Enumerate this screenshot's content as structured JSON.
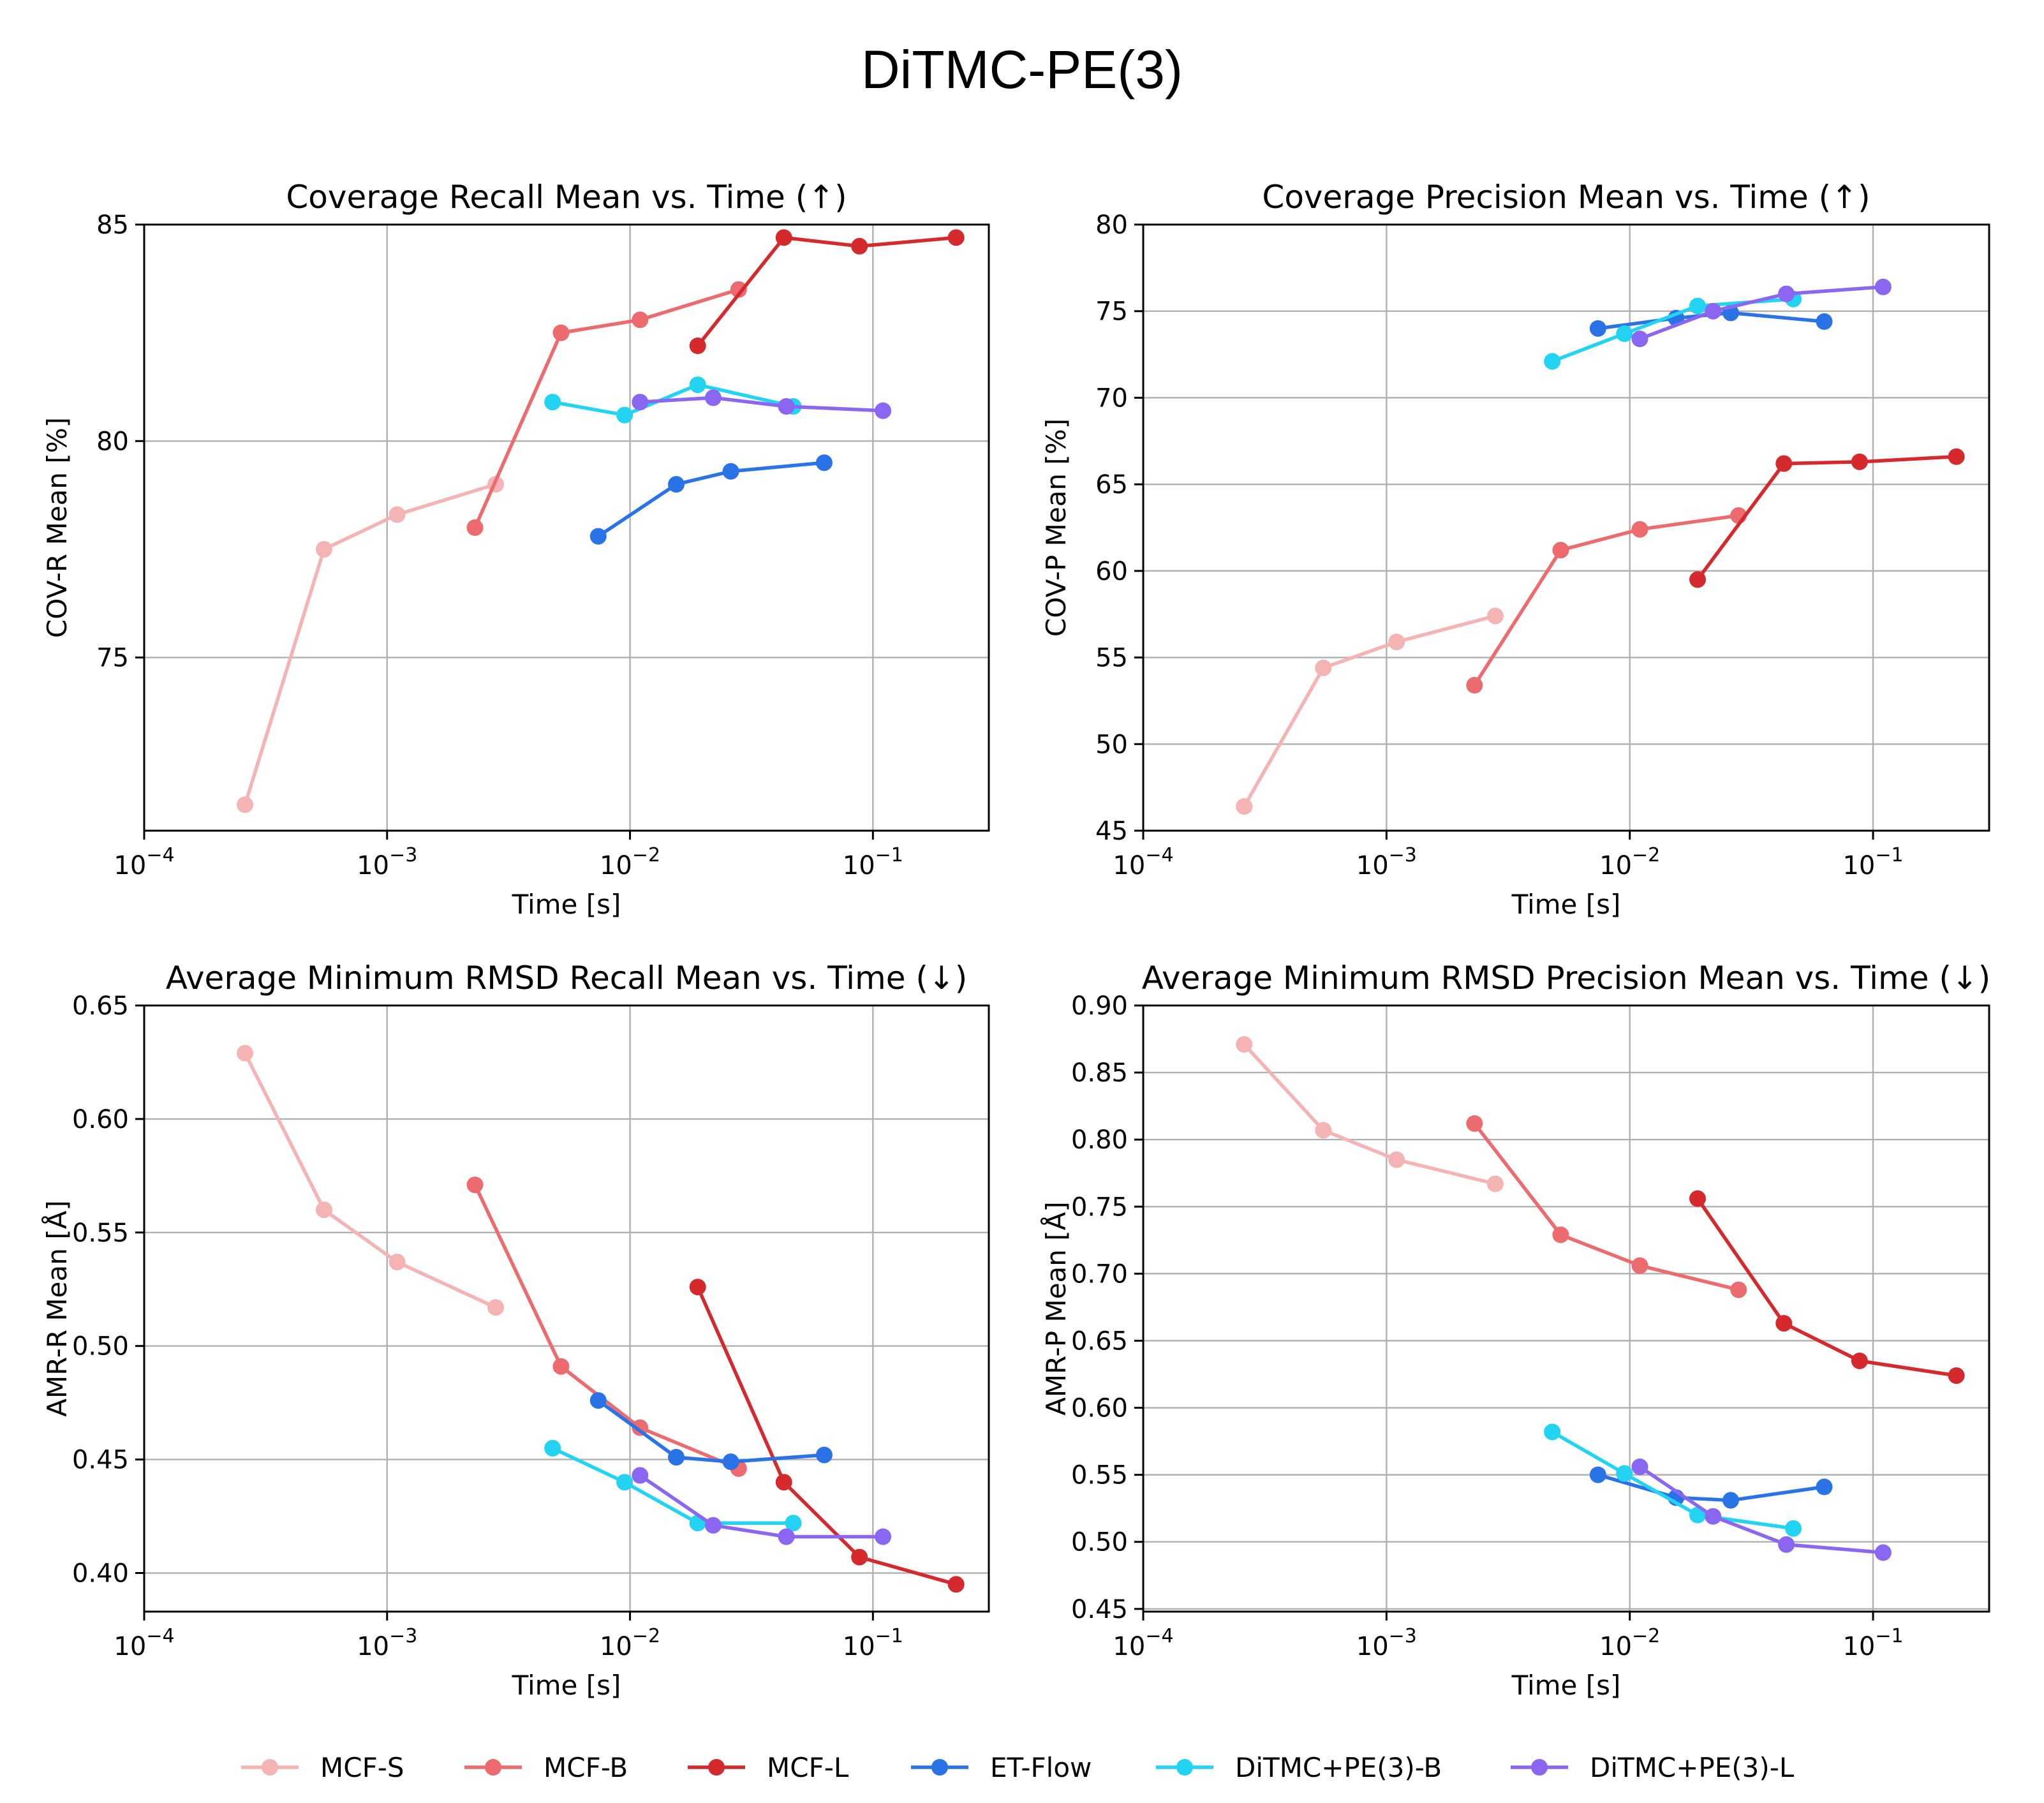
{
  "figure": {
    "title": "DiTMC-PE(3)"
  },
  "colors": {
    "MCF-S": "#f4b4b4",
    "MCF-B": "#ec6b6f",
    "MCF-L": "#d42a2e",
    "ET-Flow": "#2a73e6",
    "DiTMC+PE(3)-B": "#22d3f2",
    "DiTMC+PE(3)-L": "#8b66f0"
  },
  "legend": {
    "placement": "bottom-center",
    "entries": [
      "MCF-S",
      "MCF-B",
      "MCF-L",
      "ET-Flow",
      "DiTMC+PE(3)-B",
      "DiTMC+PE(3)-L"
    ]
  },
  "chart_data": [
    {
      "type": "line",
      "title": "Coverage Recall Mean vs. Time (↑)",
      "xlabel": "Time [s]",
      "ylabel": "COV-R Mean [%]",
      "xscale": "log",
      "xlim": [
        0.0001,
        0.3
      ],
      "ylim": [
        71,
        85
      ],
      "xticks": [
        0.0001,
        0.001,
        0.01,
        0.1
      ],
      "xtick_labels": [
        "10^-4",
        "10^-3",
        "10^-2",
        "10^-1"
      ],
      "yticks": [
        75,
        80,
        85
      ],
      "ytick_labels": [
        "75",
        "80",
        "85"
      ],
      "grid": true,
      "series": [
        {
          "name": "MCF-S",
          "x": [
            0.00026,
            0.00055,
            0.0011,
            0.0028
          ],
          "y": [
            71.6,
            77.5,
            78.3,
            79.0
          ]
        },
        {
          "name": "MCF-B",
          "x": [
            0.0023,
            0.0052,
            0.011,
            0.028
          ],
          "y": [
            78.0,
            82.5,
            82.8,
            83.5
          ]
        },
        {
          "name": "MCF-L",
          "x": [
            0.019,
            0.043,
            0.088,
            0.22
          ],
          "y": [
            82.2,
            84.7,
            84.5,
            84.7
          ]
        },
        {
          "name": "ET-Flow",
          "x": [
            0.0074,
            0.0155,
            0.026,
            0.063
          ],
          "y": [
            77.8,
            79.0,
            79.3,
            79.5
          ]
        },
        {
          "name": "DiTMC+PE(3)-B",
          "x": [
            0.0048,
            0.0095,
            0.019,
            0.047
          ],
          "y": [
            80.9,
            80.6,
            81.3,
            80.8
          ]
        },
        {
          "name": "DiTMC+PE(3)-L",
          "x": [
            0.011,
            0.022,
            0.044,
            0.11
          ],
          "y": [
            80.9,
            81.0,
            80.8,
            80.7
          ]
        }
      ]
    },
    {
      "type": "line",
      "title": "Coverage Precision Mean vs. Time (↑)",
      "xlabel": "Time [s]",
      "ylabel": "COV-P Mean [%]",
      "xscale": "log",
      "xlim": [
        0.0001,
        0.3
      ],
      "ylim": [
        45,
        80
      ],
      "xticks": [
        0.0001,
        0.001,
        0.01,
        0.1
      ],
      "xtick_labels": [
        "10^-4",
        "10^-3",
        "10^-2",
        "10^-1"
      ],
      "yticks": [
        45,
        50,
        55,
        60,
        65,
        70,
        75,
        80
      ],
      "ytick_labels": [
        "45",
        "50",
        "55",
        "60",
        "65",
        "70",
        "75",
        "80"
      ],
      "grid": true,
      "series": [
        {
          "name": "MCF-S",
          "x": [
            0.00026,
            0.00055,
            0.0011,
            0.0028
          ],
          "y": [
            46.4,
            54.4,
            55.9,
            57.4
          ]
        },
        {
          "name": "MCF-B",
          "x": [
            0.0023,
            0.0052,
            0.011,
            0.028
          ],
          "y": [
            53.4,
            61.2,
            62.4,
            63.2
          ]
        },
        {
          "name": "MCF-L",
          "x": [
            0.019,
            0.043,
            0.088,
            0.22
          ],
          "y": [
            59.5,
            66.2,
            66.3,
            66.6
          ]
        },
        {
          "name": "ET-Flow",
          "x": [
            0.0074,
            0.0155,
            0.026,
            0.063
          ],
          "y": [
            74.0,
            74.6,
            74.9,
            74.4
          ]
        },
        {
          "name": "DiTMC+PE(3)-B",
          "x": [
            0.0048,
            0.0095,
            0.019,
            0.047
          ],
          "y": [
            72.1,
            73.7,
            75.3,
            75.7
          ]
        },
        {
          "name": "DiTMC+PE(3)-L",
          "x": [
            0.011,
            0.022,
            0.044,
            0.11
          ],
          "y": [
            73.4,
            75.0,
            76.0,
            76.4
          ]
        }
      ]
    },
    {
      "type": "line",
      "title": "Average Minimum RMSD Recall Mean vs. Time (↓)",
      "xlabel": "Time [s]",
      "ylabel": "AMR-R Mean [Å]",
      "xscale": "log",
      "xlim": [
        0.0001,
        0.3
      ],
      "ylim": [
        0.383,
        0.65
      ],
      "xticks": [
        0.0001,
        0.001,
        0.01,
        0.1
      ],
      "xtick_labels": [
        "10^-4",
        "10^-3",
        "10^-2",
        "10^-1"
      ],
      "yticks": [
        0.4,
        0.45,
        0.5,
        0.55,
        0.6,
        0.65
      ],
      "ytick_labels": [
        "0.40",
        "0.45",
        "0.50",
        "0.55",
        "0.60",
        "0.65"
      ],
      "grid": true,
      "series": [
        {
          "name": "MCF-S",
          "x": [
            0.00026,
            0.00055,
            0.0011,
            0.0028
          ],
          "y": [
            0.629,
            0.56,
            0.537,
            0.517
          ]
        },
        {
          "name": "MCF-B",
          "x": [
            0.0023,
            0.0052,
            0.011,
            0.028
          ],
          "y": [
            0.571,
            0.491,
            0.464,
            0.446
          ]
        },
        {
          "name": "MCF-L",
          "x": [
            0.019,
            0.043,
            0.088,
            0.22
          ],
          "y": [
            0.526,
            0.44,
            0.407,
            0.395
          ]
        },
        {
          "name": "ET-Flow",
          "x": [
            0.0074,
            0.0155,
            0.026,
            0.063
          ],
          "y": [
            0.476,
            0.451,
            0.449,
            0.452
          ]
        },
        {
          "name": "DiTMC+PE(3)-B",
          "x": [
            0.0048,
            0.0095,
            0.019,
            0.047
          ],
          "y": [
            0.455,
            0.44,
            0.422,
            0.422
          ]
        },
        {
          "name": "DiTMC+PE(3)-L",
          "x": [
            0.011,
            0.022,
            0.044,
            0.11
          ],
          "y": [
            0.443,
            0.421,
            0.416,
            0.416
          ]
        }
      ]
    },
    {
      "type": "line",
      "title": "Average Minimum RMSD Precision Mean vs. Time (↓)",
      "xlabel": "Time [s]",
      "ylabel": "AMR-P Mean [Å]",
      "xscale": "log",
      "xlim": [
        0.0001,
        0.3
      ],
      "ylim": [
        0.448,
        0.9
      ],
      "xticks": [
        0.0001,
        0.001,
        0.01,
        0.1
      ],
      "xtick_labels": [
        "10^-4",
        "10^-3",
        "10^-2",
        "10^-1"
      ],
      "yticks": [
        0.45,
        0.5,
        0.55,
        0.6,
        0.65,
        0.7,
        0.75,
        0.8,
        0.85,
        0.9
      ],
      "ytick_labels": [
        "0.45",
        "0.50",
        "0.55",
        "0.60",
        "0.65",
        "0.70",
        "0.75",
        "0.80",
        "0.85",
        "0.90"
      ],
      "grid": true,
      "series": [
        {
          "name": "MCF-S",
          "x": [
            0.00026,
            0.00055,
            0.0011,
            0.0028
          ],
          "y": [
            0.871,
            0.807,
            0.785,
            0.767
          ]
        },
        {
          "name": "MCF-B",
          "x": [
            0.0023,
            0.0052,
            0.011,
            0.028
          ],
          "y": [
            0.812,
            0.729,
            0.706,
            0.688
          ]
        },
        {
          "name": "MCF-L",
          "x": [
            0.019,
            0.043,
            0.088,
            0.22
          ],
          "y": [
            0.756,
            0.663,
            0.635,
            0.624
          ]
        },
        {
          "name": "ET-Flow",
          "x": [
            0.0074,
            0.0155,
            0.026,
            0.063
          ],
          "y": [
            0.55,
            0.533,
            0.531,
            0.541
          ]
        },
        {
          "name": "DiTMC+PE(3)-B",
          "x": [
            0.0048,
            0.0095,
            0.019,
            0.047
          ],
          "y": [
            0.582,
            0.551,
            0.52,
            0.51
          ]
        },
        {
          "name": "DiTMC+PE(3)-L",
          "x": [
            0.011,
            0.022,
            0.044,
            0.11
          ],
          "y": [
            0.556,
            0.519,
            0.498,
            0.492
          ]
        }
      ]
    }
  ]
}
